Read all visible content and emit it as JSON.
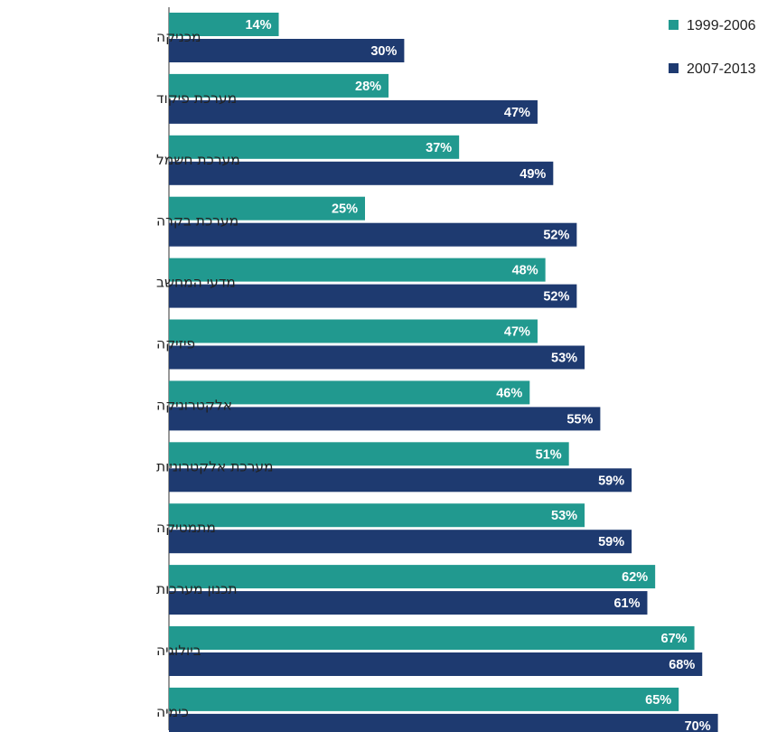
{
  "chart_data": {
    "type": "bar",
    "orientation": "horizontal",
    "categories": [
      "מכניקה",
      "מערכת פיקוד",
      "מערכת חשמל",
      "מערכת בקרה",
      "מדעי המחשב",
      "פיזיקה",
      "אלקטרוניקה",
      "מערכת אלקטרוניות",
      "מתמטיקה",
      "תכנון מערכות",
      "ביולוגיה",
      "כימיה"
    ],
    "series": [
      {
        "name": "1999-2006",
        "color": "#21998f",
        "values": [
          14,
          28,
          37,
          25,
          48,
          47,
          46,
          51,
          53,
          62,
          67,
          65
        ],
        "labels": [
          "14%",
          "28%",
          "37%",
          "25%",
          "48%",
          "47%",
          "46%",
          "51%",
          "53%",
          "62%",
          "67%",
          "65%"
        ]
      },
      {
        "name": "2007-2013",
        "color": "#1e3a70",
        "values": [
          30,
          47,
          49,
          52,
          52,
          53,
          55,
          59,
          59,
          61,
          68,
          70
        ],
        "labels": [
          "30%",
          "47%",
          "49%",
          "52%",
          "52%",
          "53%",
          "55%",
          "59%",
          "59%",
          "61%",
          "68%",
          "70%"
        ]
      }
    ],
    "value_unit": "%",
    "xlim": [
      0,
      100
    ],
    "grid": false,
    "legend_position": "top-right",
    "title": "",
    "xlabel": "",
    "ylabel": ""
  }
}
